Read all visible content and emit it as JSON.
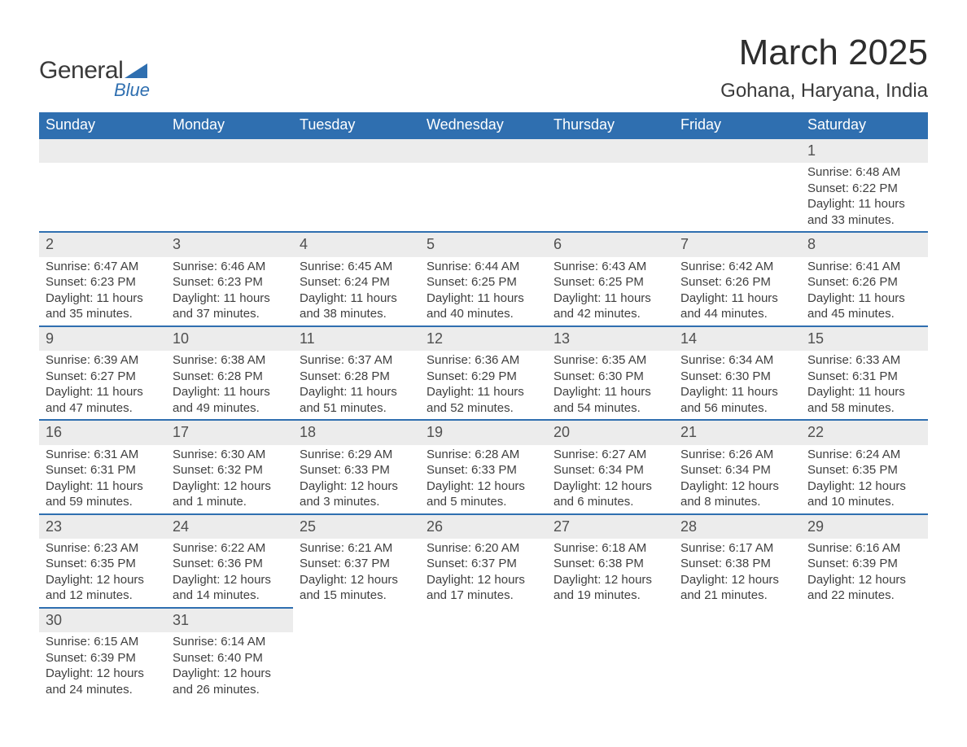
{
  "logo": {
    "text1": "General",
    "text2": "Blue",
    "triangle_color": "#2f6fb0"
  },
  "title": "March 2025",
  "location": "Gohana, Haryana, India",
  "header_bg": "#2f6fb0",
  "header_fg": "#ffffff",
  "row_sep_color": "#2f6fb0",
  "daynum_bg": "#ececec",
  "text_color": "#404040",
  "font_family": "Arial, Helvetica, sans-serif",
  "title_fontsize": 44,
  "location_fontsize": 24,
  "dayname_fontsize": 18,
  "daynum_fontsize": 18,
  "body_fontsize": 15,
  "daynames": [
    "Sunday",
    "Monday",
    "Tuesday",
    "Wednesday",
    "Thursday",
    "Friday",
    "Saturday"
  ],
  "weeks": [
    [
      null,
      null,
      null,
      null,
      null,
      null,
      {
        "n": "1",
        "sr": "6:48 AM",
        "ss": "6:22 PM",
        "dl": "11 hours and 33 minutes."
      }
    ],
    [
      {
        "n": "2",
        "sr": "6:47 AM",
        "ss": "6:23 PM",
        "dl": "11 hours and 35 minutes."
      },
      {
        "n": "3",
        "sr": "6:46 AM",
        "ss": "6:23 PM",
        "dl": "11 hours and 37 minutes."
      },
      {
        "n": "4",
        "sr": "6:45 AM",
        "ss": "6:24 PM",
        "dl": "11 hours and 38 minutes."
      },
      {
        "n": "5",
        "sr": "6:44 AM",
        "ss": "6:25 PM",
        "dl": "11 hours and 40 minutes."
      },
      {
        "n": "6",
        "sr": "6:43 AM",
        "ss": "6:25 PM",
        "dl": "11 hours and 42 minutes."
      },
      {
        "n": "7",
        "sr": "6:42 AM",
        "ss": "6:26 PM",
        "dl": "11 hours and 44 minutes."
      },
      {
        "n": "8",
        "sr": "6:41 AM",
        "ss": "6:26 PM",
        "dl": "11 hours and 45 minutes."
      }
    ],
    [
      {
        "n": "9",
        "sr": "6:39 AM",
        "ss": "6:27 PM",
        "dl": "11 hours and 47 minutes."
      },
      {
        "n": "10",
        "sr": "6:38 AM",
        "ss": "6:28 PM",
        "dl": "11 hours and 49 minutes."
      },
      {
        "n": "11",
        "sr": "6:37 AM",
        "ss": "6:28 PM",
        "dl": "11 hours and 51 minutes."
      },
      {
        "n": "12",
        "sr": "6:36 AM",
        "ss": "6:29 PM",
        "dl": "11 hours and 52 minutes."
      },
      {
        "n": "13",
        "sr": "6:35 AM",
        "ss": "6:30 PM",
        "dl": "11 hours and 54 minutes."
      },
      {
        "n": "14",
        "sr": "6:34 AM",
        "ss": "6:30 PM",
        "dl": "11 hours and 56 minutes."
      },
      {
        "n": "15",
        "sr": "6:33 AM",
        "ss": "6:31 PM",
        "dl": "11 hours and 58 minutes."
      }
    ],
    [
      {
        "n": "16",
        "sr": "6:31 AM",
        "ss": "6:31 PM",
        "dl": "11 hours and 59 minutes."
      },
      {
        "n": "17",
        "sr": "6:30 AM",
        "ss": "6:32 PM",
        "dl": "12 hours and 1 minute."
      },
      {
        "n": "18",
        "sr": "6:29 AM",
        "ss": "6:33 PM",
        "dl": "12 hours and 3 minutes."
      },
      {
        "n": "19",
        "sr": "6:28 AM",
        "ss": "6:33 PM",
        "dl": "12 hours and 5 minutes."
      },
      {
        "n": "20",
        "sr": "6:27 AM",
        "ss": "6:34 PM",
        "dl": "12 hours and 6 minutes."
      },
      {
        "n": "21",
        "sr": "6:26 AM",
        "ss": "6:34 PM",
        "dl": "12 hours and 8 minutes."
      },
      {
        "n": "22",
        "sr": "6:24 AM",
        "ss": "6:35 PM",
        "dl": "12 hours and 10 minutes."
      }
    ],
    [
      {
        "n": "23",
        "sr": "6:23 AM",
        "ss": "6:35 PM",
        "dl": "12 hours and 12 minutes."
      },
      {
        "n": "24",
        "sr": "6:22 AM",
        "ss": "6:36 PM",
        "dl": "12 hours and 14 minutes."
      },
      {
        "n": "25",
        "sr": "6:21 AM",
        "ss": "6:37 PM",
        "dl": "12 hours and 15 minutes."
      },
      {
        "n": "26",
        "sr": "6:20 AM",
        "ss": "6:37 PM",
        "dl": "12 hours and 17 minutes."
      },
      {
        "n": "27",
        "sr": "6:18 AM",
        "ss": "6:38 PM",
        "dl": "12 hours and 19 minutes."
      },
      {
        "n": "28",
        "sr": "6:17 AM",
        "ss": "6:38 PM",
        "dl": "12 hours and 21 minutes."
      },
      {
        "n": "29",
        "sr": "6:16 AM",
        "ss": "6:39 PM",
        "dl": "12 hours and 22 minutes."
      }
    ],
    [
      {
        "n": "30",
        "sr": "6:15 AM",
        "ss": "6:39 PM",
        "dl": "12 hours and 24 minutes."
      },
      {
        "n": "31",
        "sr": "6:14 AM",
        "ss": "6:40 PM",
        "dl": "12 hours and 26 minutes."
      },
      null,
      null,
      null,
      null,
      null
    ]
  ],
  "labels": {
    "sunrise": "Sunrise: ",
    "sunset": "Sunset: ",
    "daylight": "Daylight: "
  }
}
